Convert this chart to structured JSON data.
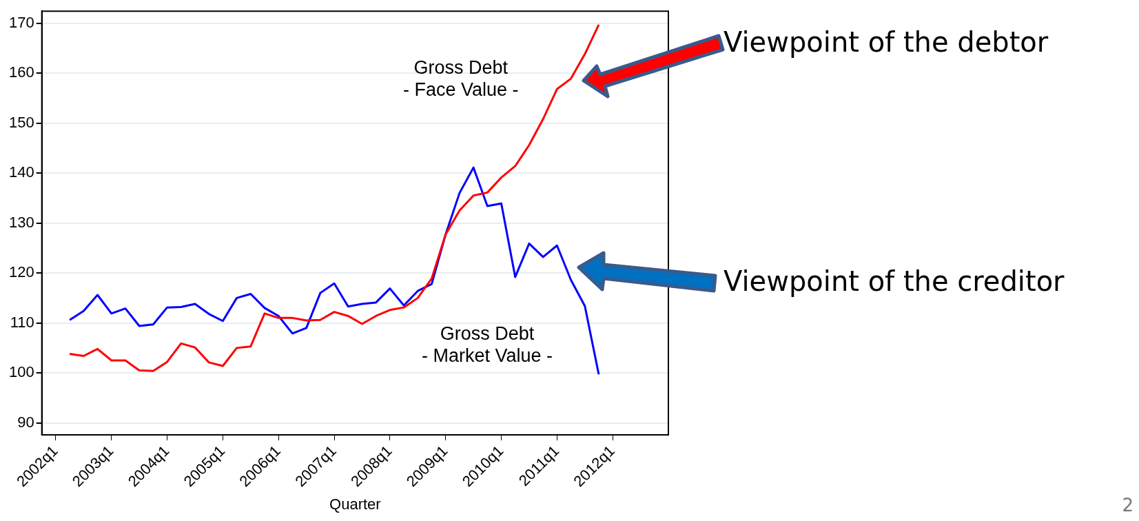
{
  "chart_data": {
    "type": "line",
    "xlabel": "Quarter",
    "categories": [
      null,
      "2002q1",
      null,
      null,
      null,
      "2003q1",
      null,
      null,
      null,
      "2004q1",
      null,
      null,
      null,
      "2005q1",
      null,
      null,
      null,
      "2006q1",
      null,
      null,
      null,
      "2007q1",
      null,
      null,
      null,
      "2008q1",
      null,
      null,
      null,
      "2009q1",
      null,
      null,
      null,
      "2010q1",
      null,
      null,
      null,
      "2011q1",
      null,
      null,
      null,
      "2012q1",
      null,
      null,
      null,
      null
    ],
    "series": [
      {
        "color": "#ff0000",
        "values": [
          null,
          null,
          103.8,
          103.4,
          104.8,
          102.5,
          102.5,
          100.5,
          100.4,
          102.2,
          105.9,
          105.1,
          102.1,
          101.4,
          105.0,
          105.3,
          111.9,
          111.0,
          111.0,
          110.5,
          110.6,
          112.2,
          111.4,
          109.8,
          111.4,
          112.6,
          113.1,
          115.0,
          118.9,
          127.7,
          132.5,
          135.5,
          136.1,
          139.1,
          141.4,
          145.6,
          150.8,
          156.8,
          158.9,
          163.8,
          169.7,
          null,
          null,
          null,
          null,
          null
        ]
      },
      {
        "color": "#0000ff",
        "values": [
          null,
          null,
          110.6,
          112.4,
          115.6,
          111.9,
          112.9,
          109.4,
          109.7,
          113.1,
          113.2,
          113.8,
          111.8,
          110.4,
          115.0,
          115.8,
          113.0,
          111.4,
          107.9,
          109.0,
          116.0,
          117.9,
          113.3,
          113.8,
          114.1,
          116.9,
          113.5,
          116.4,
          117.8,
          127.7,
          136.0,
          141.1,
          133.4,
          133.9,
          119.2,
          125.9,
          123.2,
          125.5,
          118.6,
          113.4,
          99.7,
          null,
          null,
          null,
          null,
          null
        ]
      }
    ],
    "ylim": [
      87.6,
      172.4
    ],
    "yticks": [
      90,
      100,
      110,
      120,
      130,
      140,
      150,
      160,
      170
    ],
    "grid": "y",
    "marker": "none",
    "line_style": "solid",
    "legend": false,
    "annotations": [
      "Gross Debt\n- Face Value -",
      "Gross Debt\n- Market Value -",
      "Viewpoint of the debtor",
      "Viewpoint of the creditor",
      "2"
    ]
  }
}
